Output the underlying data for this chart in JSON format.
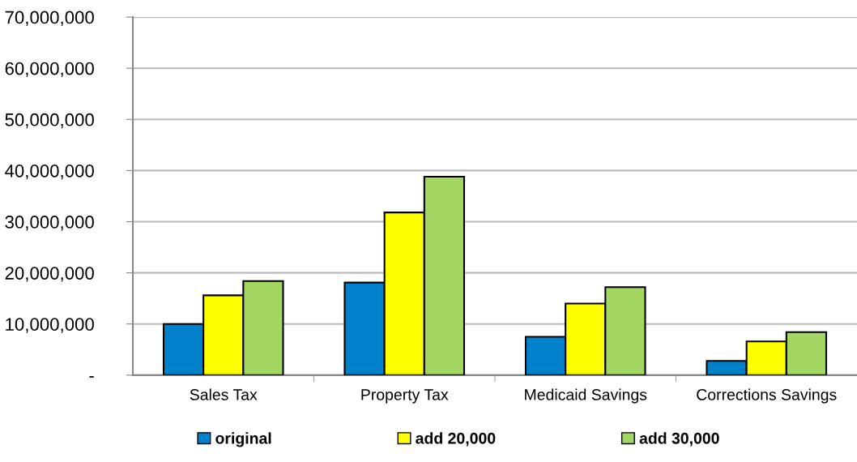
{
  "chart_data": {
    "type": "bar",
    "categories": [
      "Sales Tax",
      "Property Tax",
      "Medicaid Savings",
      "Corrections Savings"
    ],
    "series": [
      {
        "name": "original",
        "color": "#0081c9",
        "values": [
          10000000,
          18100000,
          7500000,
          2800000
        ]
      },
      {
        "name": "add 20,000",
        "color": "#ffff00",
        "values": [
          15600000,
          31800000,
          14000000,
          6600000
        ]
      },
      {
        "name": "add 30,000",
        "color": "#a3d762",
        "values": [
          18400000,
          38800000,
          17200000,
          8400000
        ]
      }
    ],
    "ylim": [
      0,
      70000000
    ],
    "yticks": [
      {
        "value": 0,
        "label": "-"
      },
      {
        "value": 10000000,
        "label": "10,000,000"
      },
      {
        "value": 20000000,
        "label": "20,000,000"
      },
      {
        "value": 30000000,
        "label": "30,000,000"
      },
      {
        "value": 40000000,
        "label": "40,000,000"
      },
      {
        "value": 50000000,
        "label": "50,000,000"
      },
      {
        "value": 60000000,
        "label": "60,000,000"
      },
      {
        "value": 70000000,
        "label": "70,000,000"
      }
    ],
    "grid": "y",
    "legend": "bottom"
  }
}
